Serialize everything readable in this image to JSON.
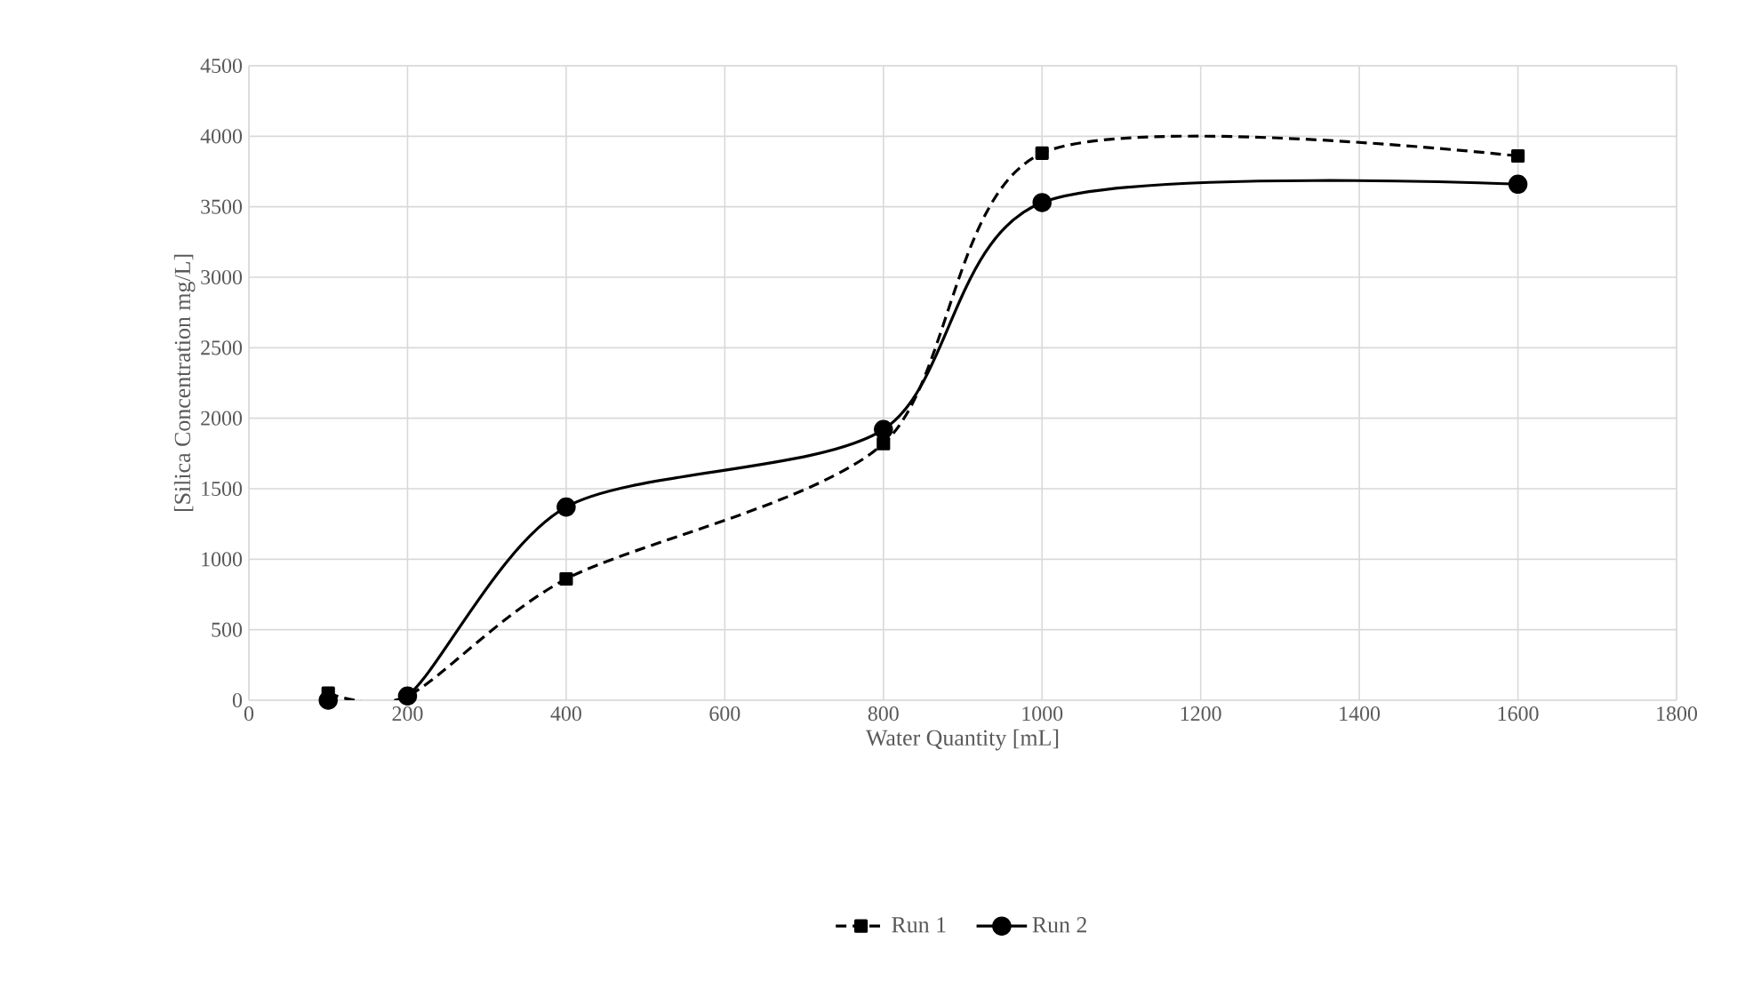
{
  "chart_data": {
    "type": "line",
    "xlabel": "Water Quantity [mL]",
    "ylabel": "[Silica Concentration mg/L]",
    "x": [
      100,
      200,
      400,
      800,
      1000,
      1600
    ],
    "series": [
      {
        "name": "Run 1",
        "color": "#000000",
        "marker": "square",
        "line_style": "dashed",
        "values": [
          50,
          30,
          860,
          1820,
          3880,
          3860
        ]
      },
      {
        "name": "Run 2",
        "color": "#000000",
        "marker": "circle",
        "line_style": "solid",
        "values": [
          0,
          30,
          1370,
          1920,
          3530,
          3660
        ]
      }
    ],
    "xlim": [
      0,
      1800
    ],
    "xticks": [
      0,
      200,
      400,
      600,
      800,
      1000,
      1200,
      1400,
      1600,
      1800
    ],
    "ylim": [
      0,
      4500
    ],
    "yticks": [
      0,
      500,
      1000,
      1500,
      2000,
      2500,
      3000,
      3500,
      4000,
      4500
    ],
    "grid": true,
    "legend": "bottom"
  }
}
